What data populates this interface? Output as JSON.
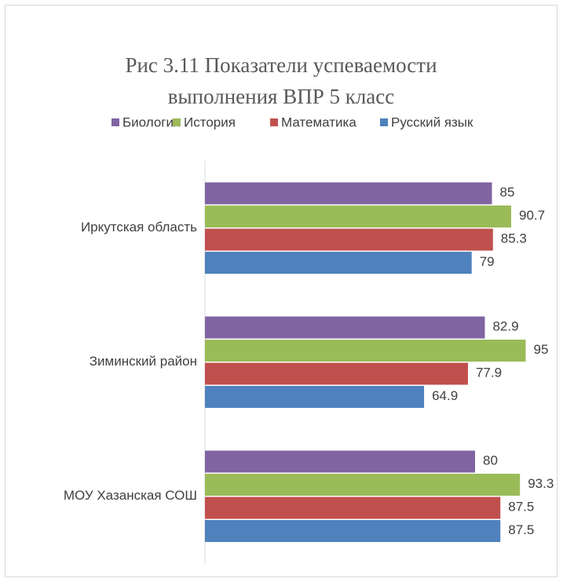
{
  "chart_data": {
    "type": "barh",
    "title": [
      "Рис 3.11 Показатели успеваемости",
      "выполнения ВПР 5 класс"
    ],
    "categories": [
      "Иркутская область",
      "Зиминский район",
      "МОУ Хазанская СОШ"
    ],
    "series": [
      {
        "name": "Биология",
        "color": "#8064a2",
        "values": [
          85,
          82.9,
          80
        ]
      },
      {
        "name": "История",
        "color": "#9bbb59",
        "values": [
          90.7,
          95,
          93.3
        ]
      },
      {
        "name": "Математика",
        "color": "#c0504d",
        "values": [
          85.3,
          77.9,
          87.5
        ]
      },
      {
        "name": "Русский язык",
        "color": "#4f81bd",
        "values": [
          79,
          64.9,
          87.5
        ]
      }
    ],
    "xlim": [
      0,
      100
    ],
    "legend": "top"
  }
}
